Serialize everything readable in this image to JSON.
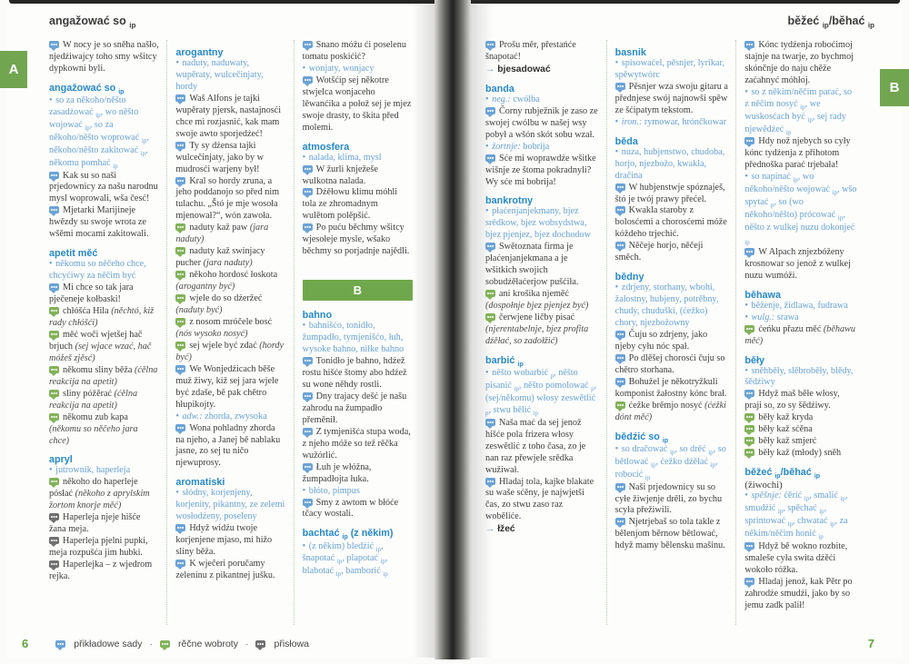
{
  "left_page": {
    "header": "angažować so {ip}",
    "tab": "A",
    "page_number": "6",
    "columns": [
      [
        {
          "type": "ex",
          "icon": "blue",
          "text": "W nocy je so sněha našło, njedźiwajcy toho smy wšitcy dypkowni byli."
        },
        {
          "type": "entry",
          "text": "angažować so {ip}"
        },
        {
          "type": "syn",
          "text": "so za někoho/něšto zasadźować {ip}, wo něšto wojować {ip}, so za někoho/něšto woprować {ip}, někoho/něšto zakitować {ip}, někomu pomhać {ip}"
        },
        {
          "type": "ex",
          "icon": "blue",
          "text": "Kak su so naši prjedownicy za našu narodnu mysl woprowali, wša česć!"
        },
        {
          "type": "ex",
          "icon": "blue",
          "text": "Mjetarki Marijineje hwězdy su swoje wrota ze wšěmi mocami zakitowali."
        },
        {
          "type": "entry",
          "text": "apetit měć"
        },
        {
          "type": "syn",
          "text": "někomu so něčeho chce, chcyćiwy za něčim być"
        },
        {
          "type": "ex",
          "icon": "blue",
          "text": "Mi chce so tak jara pječeneje kołbaski!"
        },
        {
          "type": "ex",
          "icon": "green",
          "text": "chłóšća Hila",
          "gloss": "(něchtó, kiž rady chłóšći)"
        },
        {
          "type": "ex",
          "icon": "green",
          "text": "měć woči wjetšej hač brjuch",
          "gloss": "(sej wjace wzać, hač móžeš zjěsć)"
        },
        {
          "type": "ex",
          "icon": "green",
          "text": "někomu sliny běža",
          "gloss": "(ćělna reakcija na apetit)"
        },
        {
          "type": "ex",
          "icon": "green",
          "text": "sliny póžěrać",
          "gloss": "(ćělna reakcija na apetit)"
        },
        {
          "type": "ex",
          "icon": "green",
          "text": "někomu zub kapa",
          "gloss": "(někomu so něčeho jara chce)"
        },
        {
          "type": "entry",
          "text": "apryl"
        },
        {
          "type": "syn",
          "text": "jutrownik, haperleja"
        },
        {
          "type": "ex",
          "icon": "green",
          "text": "někoho do haperleje pósłać",
          "gloss": "(někoho z aprylskim žortom knorje měć)"
        },
        {
          "type": "ex",
          "icon": "gray",
          "text": "Haperleja njeje hišće žana meja."
        },
        {
          "type": "ex",
          "icon": "gray",
          "text": "Haperleja pjelni pupki, meja rozpušća jim hubki."
        },
        {
          "type": "ex",
          "icon": "gray",
          "text": "Haperlejka – z wjedrom rejka."
        }
      ],
      [
        {
          "type": "entry",
          "text": "arogantny"
        },
        {
          "type": "syn",
          "text": "naduty, naduwaty, wupěraty, wulcečinjaty, hordy"
        },
        {
          "type": "ex",
          "icon": "blue",
          "text": "Waš Alfons je tajki wupěraty pjersk, nastajnosći chce mi rozjasnić, kak mam swoje awto sporjedźeć!"
        },
        {
          "type": "ex",
          "icon": "blue",
          "text": "Ty sy dźensa tajki wulcečinjaty, jako by w mudrosći warjeny był!"
        },
        {
          "type": "ex",
          "icon": "blue",
          "text": "Kral so hordy zruna, a jeho poddanojo so před nim tulachu. „Štó je mje wosoła mjenował?“, wón zawoła."
        },
        {
          "type": "ex",
          "icon": "green",
          "text": "naduty kaž paw",
          "gloss": "(jara naduty)"
        },
        {
          "type": "ex",
          "icon": "green",
          "text": "naduty kaž swinjacy pucher",
          "gloss": "(jara naduty)"
        },
        {
          "type": "ex",
          "icon": "green",
          "text": "někoho hordosć łoskota",
          "gloss": "(arogantny być)"
        },
        {
          "type": "ex",
          "icon": "green",
          "text": "wjele do so dźeržeć",
          "gloss": "(naduty być)"
        },
        {
          "type": "ex",
          "icon": "green",
          "text": "z nosom mróčele bosć",
          "gloss": "(nós wysoko nosyć)"
        },
        {
          "type": "ex",
          "icon": "green",
          "text": "sej wjele być zdać",
          "gloss": "(hordy być)"
        },
        {
          "type": "ex",
          "icon": "blue",
          "text": "We Wonjedźicach běše muž žiwy, kiž sej jara wjele być zdaše, bě pak chětro hłupikojty."
        },
        {
          "type": "syn",
          "label": "adw.:",
          "text": "zhorda, zwysoka"
        },
        {
          "type": "ex",
          "icon": "blue",
          "text": "Wona pohladny zhorda na njeho, a Janej bě nablaku jasne, zo sej tu ničo njewuprosy."
        },
        {
          "type": "entry",
          "text": "aromatiski"
        },
        {
          "type": "syn",
          "text": "słódny, korjenjeny, korjenity, pikantny, ze zelemi wosłodźeny, poseleny"
        },
        {
          "type": "ex",
          "icon": "blue",
          "text": "Hdyž widźu twoje korjenjene mjaso, mi hižo sliny běža."
        },
        {
          "type": "ex",
          "icon": "blue",
          "text": "K wječeri poručamy zeleninu z pikantnej jušku."
        }
      ],
      [
        {
          "type": "ex",
          "icon": "blue",
          "text": "Snano móžu ći poselenu tomatu poskićić?"
        },
        {
          "type": "syn",
          "text": "wonjaty, wonjacy"
        },
        {
          "type": "ex",
          "icon": "blue",
          "text": "Wotšćip sej někotre stwjelca wonjaceho lěwanćika a połož sej je mjez swoje drasty, to škita před molemi."
        },
        {
          "type": "entry",
          "text": "atmosfera"
        },
        {
          "type": "syn",
          "text": "nalada, klima, mysl"
        },
        {
          "type": "ex",
          "icon": "blue",
          "text": "W žurli knježeše wulkotna nalada."
        },
        {
          "type": "ex",
          "icon": "blue",
          "text": "Dźěłowu klimu móhli tola ze zhromadnym wulětom polěpšić."
        },
        {
          "type": "ex",
          "icon": "blue",
          "text": "Po puću běchmy wšitcy wjesołeje mysle, wšako běchmy so porjadnje najědli."
        },
        {
          "type": "divider",
          "text": "B"
        },
        {
          "type": "entry",
          "text": "bahno"
        },
        {
          "type": "syn",
          "text": "bahnišćo, tonidło, žumpadło, tymjenišćo, łuh, wysoke bahno, niłke bahno"
        },
        {
          "type": "ex",
          "icon": "blue",
          "text": "Tonidło je bahno, hdźež rostu hišće štomy abo hdźež su wone něhdy rostli."
        },
        {
          "type": "ex",
          "icon": "blue",
          "text": "Dny trajacy dešć je našu zahrodu na žumpadło přeměnił."
        },
        {
          "type": "ex",
          "icon": "blue",
          "text": "Z tymjenišća stupa woda, z njeho móže so tež rěčka wužórlić."
        },
        {
          "type": "ex",
          "icon": "blue",
          "text": "Łuh je włóžna, žumpadłojta łuka."
        },
        {
          "type": "syn",
          "text": "błóto, pimpus"
        },
        {
          "type": "ex",
          "icon": "blue",
          "text": "Smy z awtom w błóće tčacy wostali."
        },
        {
          "type": "entry",
          "text": "bachtać {ip} (z někim)"
        },
        {
          "type": "syn",
          "text": "(z někim) bledźić {ip}, šnapotać {ip}, plapotać {ip}, blabotać {ip}, bamborić {ip}"
        }
      ]
    ]
  },
  "right_page": {
    "header": "běžeć {ip}/běhać {ip}",
    "tab": "B",
    "page_number": "7",
    "columns": [
      [
        {
          "type": "ex",
          "icon": "blue",
          "text": "Prošu měr, přestańće šnapotać!"
        },
        {
          "type": "ref",
          "text": "bjesadować"
        },
        {
          "type": "entry",
          "text": "banda"
        },
        {
          "type": "syn",
          "label": "neg.:",
          "text": "cwólba"
        },
        {
          "type": "ex",
          "icon": "blue",
          "text": "Čorny rubježnik je zaso ze swojej cwólbu w našej wsy pobył a wšón skót sobu wzał."
        },
        {
          "type": "syn",
          "label": "žortnje:",
          "text": "bobrija"
        },
        {
          "type": "ex",
          "icon": "blue",
          "text": "Sće mi woprawdźe wšitke wišnje ze štoma pokradnyli? Wy sće mi bobrija!"
        },
        {
          "type": "entry",
          "text": "bankrotny"
        },
        {
          "type": "syn",
          "text": "płaćenjanjekmany, bjez srědkow, bjez wobsydstwa, bjez pjenjez, bjez dochodow"
        },
        {
          "type": "ex",
          "icon": "blue",
          "text": "Swětoznata firma je płaćenjanjekmana a je wšitkich swojich sobudźěłaćerjow pušćiła."
        },
        {
          "type": "ex",
          "icon": "green",
          "text": "ani krošika njeměć",
          "gloss": "(dospołnje bjez pjenjez być)"
        },
        {
          "type": "ex",
          "icon": "green",
          "text": "čerwjene ličby pisać",
          "gloss": "(njerentabelnje, bjez profita dźěłać, so zadołžić)"
        },
        {
          "type": "entry",
          "text": "barbić {ip}"
        },
        {
          "type": "syn",
          "text": "něšto wobarbić {p}, něšto pisanić {ip}, něšto pomolować {p}, (sej/někomu) włosy zeswětlić {p}, stwu bělić {ip}"
        },
        {
          "type": "ex",
          "icon": "blue",
          "text": "Naša mać da sej jenož hišće pola frizera włosy zeswětlić z toho časa, zo je nan raz přewjele srědka wužiwał."
        },
        {
          "type": "ex",
          "icon": "blue",
          "text": "Hladaj tola, kajke blakate su waše sćěny, je najwjetši čas, zo stwu zaso raz woběliće."
        },
        {
          "type": "ref",
          "text": "łžeć"
        }
      ],
      [
        {
          "type": "entry",
          "text": "basnik"
        },
        {
          "type": "syn",
          "text": "spisowaćel, pěsnjer, lyrikar, spěwytwórc"
        },
        {
          "type": "ex",
          "icon": "blue",
          "text": "Pěsnjer wza swoju gitaru a přednjese swój najnowši spěw ze šćipatym tekstom."
        },
        {
          "type": "syn",
          "label": "iron.:",
          "text": "rymowar, hrónčkowar"
        },
        {
          "type": "entry",
          "text": "běda"
        },
        {
          "type": "syn",
          "text": "nuza, hubjenstwo, chudoba, horjo, njezbožo, kwakla, dračina"
        },
        {
          "type": "ex",
          "icon": "blue",
          "text": "W hubjenstwje spóznaješ, štó je twój prawy přećel."
        },
        {
          "type": "ex",
          "icon": "blue",
          "text": "Kwakla staroby z bolosćemi a chorosćemi móže kóždeho trjechić."
        },
        {
          "type": "ex",
          "icon": "blue",
          "text": "Něčeje horjo, něčeji směch."
        },
        {
          "type": "entry",
          "text": "bědny"
        },
        {
          "type": "syn",
          "text": "zdrjeny, storhany, wbohi, žałostny, hubjeny, potrěbny, chudy, chuduški, (ćežko) chory, njezbožowny"
        },
        {
          "type": "ex",
          "icon": "blue",
          "text": "Čuju so zdrjeny, jako njeby cyłu nóc spał."
        },
        {
          "type": "ex",
          "icon": "blue",
          "text": "Po dlěšej chorosći čuju so chětro storhana."
        },
        {
          "type": "ex",
          "icon": "blue",
          "text": "Bohužel je někotryžkuli komponist žałostny kónc brał."
        },
        {
          "type": "ex",
          "icon": "green",
          "text": "ćežke brěmjo nosyć",
          "gloss": "(ćežki dónt měć)"
        },
        {
          "type": "entry",
          "text": "bědźić so {ip}"
        },
        {
          "type": "syn",
          "text": "so dračować {ip}, so drěć {ip}, so bětlować {ip}, ćežko dźěłać {ip}, robocić {ip}"
        },
        {
          "type": "ex",
          "icon": "blue",
          "text": "Naši prjedownicy su so cyłe žiwjenje drěli, zo bychu scyła přežiwili."
        },
        {
          "type": "ex",
          "icon": "blue",
          "text": "Njetrjebaš so tola takle z bělenjom běrnow bětlować, hdyž mamy bělensku mašinu."
        }
      ],
      [
        {
          "type": "ex",
          "icon": "blue",
          "text": "Kónc tydźenja roboćimoj stajnje na twarje, zo bychmoj skónčnje do naju chěže zaćahnyć móhłoj."
        },
        {
          "type": "syn",
          "text": "so z někim/něčim parać, so z něčim nosyć {ip}, we wuskosćach być {ip}, sej rady njewědźeć {ip}"
        },
        {
          "type": "ex",
          "icon": "blue",
          "text": "Hdy nož njebych so cyły kónc tydźenja z přihotom přednoška parać trjebała!"
        },
        {
          "type": "syn",
          "text": "so napinać {ip}, wo někoho/něšto wojować {ip}, wšo spytać {p}, so (wo někoho/něšto) prócować {ip}, něšto z wulkej nuzu dokonjeć {ip}"
        },
        {
          "type": "ex",
          "icon": "blue",
          "text": "W Alpach znjezbóženy krosnowar so jenož z wulkej nuzu wumóži."
        },
        {
          "type": "entry",
          "text": "běhawa"
        },
        {
          "type": "syn",
          "text": "běženje, židlawa, fudrawa"
        },
        {
          "type": "syn",
          "label": "wulg.:",
          "text": "srawa"
        },
        {
          "type": "ex",
          "icon": "green",
          "text": "ćeńku přazu měć",
          "gloss": "(běhawu měć)"
        },
        {
          "type": "entry",
          "text": "běły"
        },
        {
          "type": "syn",
          "text": "sněhběły, slěbroběły, blědy, šědźiwy"
        },
        {
          "type": "ex",
          "icon": "blue",
          "text": "Hdyž maš běłe włosy, praji so, zo sy šědźiwy."
        },
        {
          "type": "ex",
          "icon": "green",
          "text": "běły kaž kryda"
        },
        {
          "type": "ex",
          "icon": "green",
          "text": "běły kaž sćěna"
        },
        {
          "type": "ex",
          "icon": "green",
          "text": "běły kaž smjerć"
        },
        {
          "type": "ex",
          "icon": "green",
          "text": "běły kaž (młody) sněh"
        },
        {
          "type": "entry",
          "text": "běžeć {ip}/běhać {ip}",
          "suffix": " (žiwochi)"
        },
        {
          "type": "syn",
          "label": "spěšnje:",
          "text": "ćěrić {ip}, smalić {ip}, smudźić {ip}, spěchać {ip}, sprintować {ip}, chwatać {ip}, za někim/něčim honić {ip}"
        },
        {
          "type": "ex",
          "icon": "blue",
          "text": "Hdyž bě wokno rozbite, smaleše cyła swita dźěći wokoło róžka."
        },
        {
          "type": "ex",
          "icon": "blue",
          "text": "Hladaj jenož, kak Pětr po zahrodźe smudźi, jako by so jemu zadk palił!"
        }
      ]
    ]
  },
  "footer": {
    "separator": "·",
    "legend": [
      {
        "icon": "blue",
        "label": "přikładowe sady"
      },
      {
        "icon": "green",
        "label": "rěčne wobroty"
      },
      {
        "icon": "gray",
        "label": "přisłowa"
      }
    ]
  }
}
